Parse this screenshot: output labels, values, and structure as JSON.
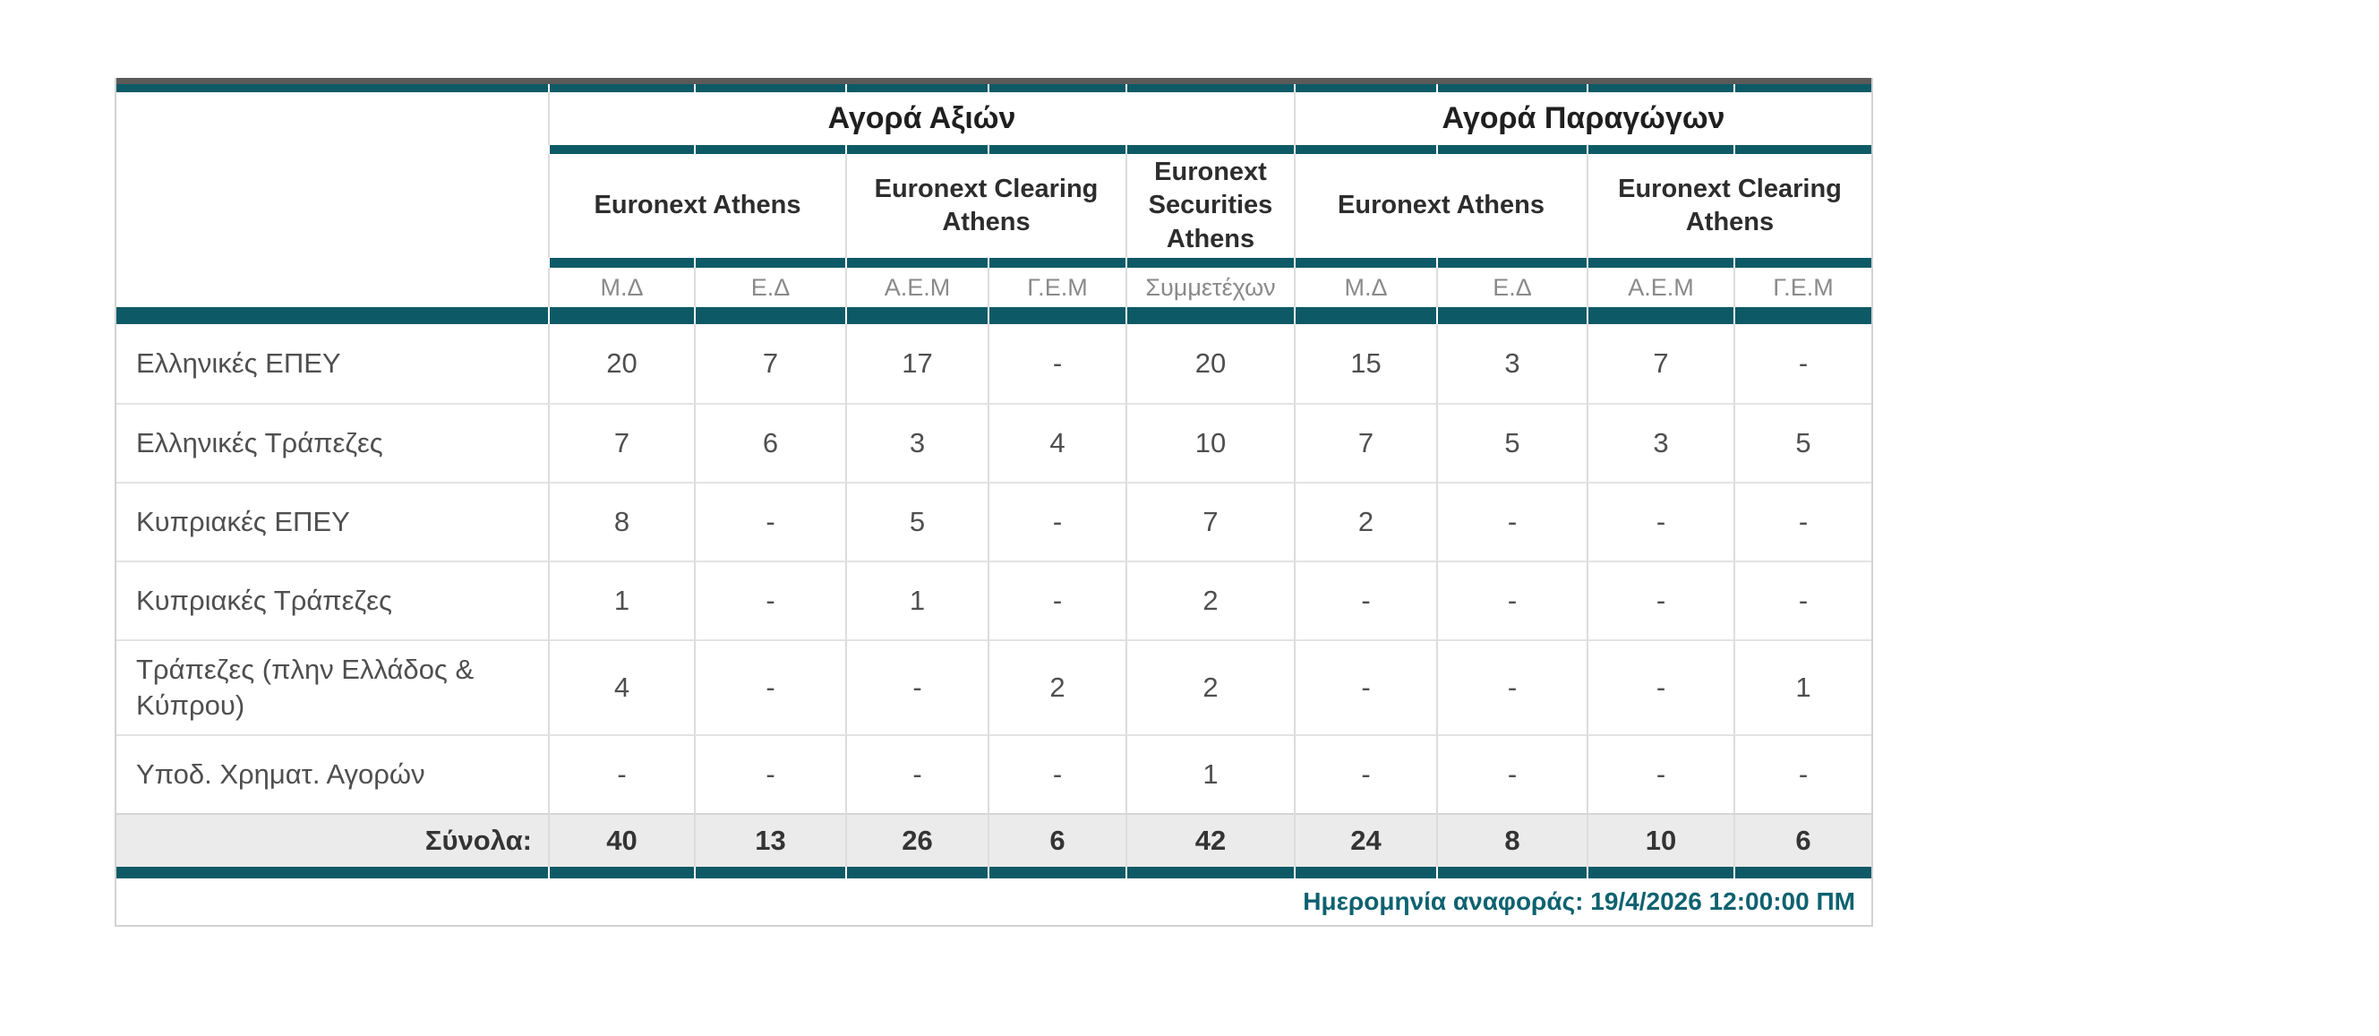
{
  "colors": {
    "teal_bar": "#0d5a66",
    "top_strip": "#5a5a5a",
    "totals_background": "#ebebeb",
    "border_light": "#dcdcdc",
    "date_text": "#0e6270"
  },
  "table": {
    "market_groups": [
      {
        "label": "Αγορά Αξιών"
      },
      {
        "label": "Αγορά Παραγώγων"
      }
    ],
    "venues": [
      {
        "label": "Euronext Athens"
      },
      {
        "label": "Euronext Clearing Athens"
      },
      {
        "label": "Euronext Securities Athens"
      },
      {
        "label": "Euronext Athens"
      },
      {
        "label": "Euronext Clearing Athens"
      }
    ],
    "subcolumns": [
      "Μ.Δ",
      "Ε.Δ",
      "Α.Ε.Μ",
      "Γ.Ε.Μ",
      "Συμμετέχων",
      "Μ.Δ",
      "Ε.Δ",
      "Α.Ε.Μ",
      "Γ.Ε.Μ"
    ],
    "rows": [
      {
        "label": "Ελληνικές ΕΠΕΥ",
        "values": [
          "20",
          "7",
          "17",
          "-",
          "20",
          "15",
          "3",
          "7",
          "-"
        ]
      },
      {
        "label": "Ελληνικές Τράπεζες",
        "values": [
          "7",
          "6",
          "3",
          "4",
          "10",
          "7",
          "5",
          "3",
          "5"
        ]
      },
      {
        "label": "Κυπριακές ΕΠΕΥ",
        "values": [
          "8",
          "-",
          "5",
          "-",
          "7",
          "2",
          "-",
          "-",
          "-"
        ]
      },
      {
        "label": "Κυπριακές Τράπεζες",
        "values": [
          "1",
          "-",
          "1",
          "-",
          "2",
          "-",
          "-",
          "-",
          "-"
        ]
      },
      {
        "label": "Τράπεζες (πλην Ελλάδος & Κύπρου)",
        "values": [
          "4",
          "-",
          "-",
          "2",
          "2",
          "-",
          "-",
          "-",
          "1"
        ]
      },
      {
        "label": "Υποδ. Χρηματ. Αγορών",
        "values": [
          "-",
          "-",
          "-",
          "-",
          "1",
          "-",
          "-",
          "-",
          "-"
        ]
      }
    ],
    "totals": {
      "label": "Σύνολα:",
      "values": [
        "40",
        "13",
        "26",
        "6",
        "42",
        "24",
        "8",
        "10",
        "6"
      ]
    },
    "footer": {
      "report_date": "Ημερομηνία αναφοράς: 19/4/2026 12:00:00 ΠΜ"
    }
  }
}
